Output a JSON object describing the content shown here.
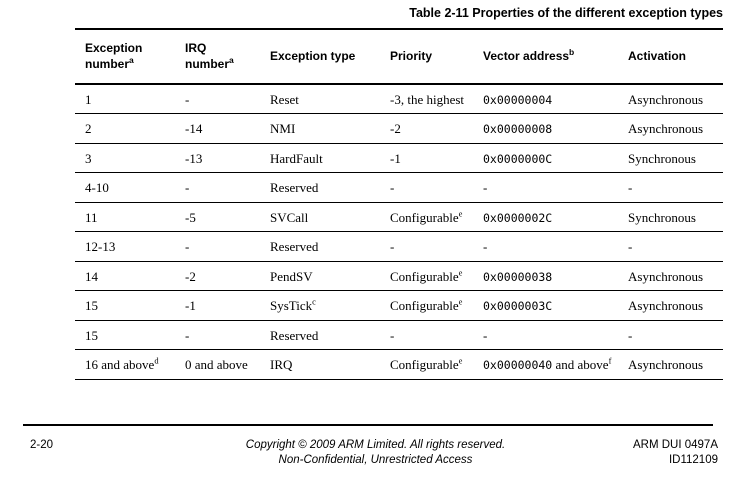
{
  "page": {
    "title": "Table 2-11 Properties of the different exception types"
  },
  "table": {
    "headers": [
      {
        "t": "Exception number",
        "s": "a"
      },
      {
        "t": "IRQ number",
        "s": "a"
      },
      {
        "t": "Exception type"
      },
      {
        "t": "Priority"
      },
      {
        "t": "Vector address",
        "s": "b"
      },
      {
        "t": "Activation"
      }
    ],
    "rows": [
      {
        "cells": [
          {
            "t": "1"
          },
          {
            "t": "-"
          },
          {
            "t": "Reset"
          },
          {
            "t": "-3, the highest"
          },
          {
            "m": "0x00000004"
          },
          {
            "t": "Asynchronous"
          }
        ]
      },
      {
        "cells": [
          {
            "t": "2"
          },
          {
            "t": "-14"
          },
          {
            "t": "NMI"
          },
          {
            "t": "-2"
          },
          {
            "m": "0x00000008"
          },
          {
            "t": "Asynchronous"
          }
        ]
      },
      {
        "cells": [
          {
            "t": "3"
          },
          {
            "t": "-13"
          },
          {
            "t": "HardFault"
          },
          {
            "t": "-1"
          },
          {
            "m": "0x0000000C"
          },
          {
            "t": "Synchronous"
          }
        ]
      },
      {
        "cells": [
          {
            "t": "4-10"
          },
          {
            "t": "-"
          },
          {
            "t": "Reserved"
          },
          {
            "t": "-"
          },
          {
            "t": "-"
          },
          {
            "t": "-"
          }
        ]
      },
      {
        "cells": [
          {
            "t": "11"
          },
          {
            "t": "-5"
          },
          {
            "t": "SVCall"
          },
          {
            "t": "Configurable",
            "s": "e"
          },
          {
            "m": "0x0000002C"
          },
          {
            "t": "Synchronous"
          }
        ]
      },
      {
        "cells": [
          {
            "t": "12-13"
          },
          {
            "t": "-"
          },
          {
            "t": "Reserved"
          },
          {
            "t": "-"
          },
          {
            "t": "-"
          },
          {
            "t": "-"
          }
        ]
      },
      {
        "cells": [
          {
            "t": "14"
          },
          {
            "t": "-2"
          },
          {
            "t": "PendSV"
          },
          {
            "t": "Configurable",
            "s": "e"
          },
          {
            "m": "0x00000038"
          },
          {
            "t": "Asynchronous"
          }
        ]
      },
      {
        "cells": [
          {
            "t": "15"
          },
          {
            "t": "-1"
          },
          {
            "t": "SysTick",
            "s": "c"
          },
          {
            "t": "Configurable",
            "s": "e"
          },
          {
            "m": "0x0000003C"
          },
          {
            "t": "Asynchronous"
          }
        ]
      },
      {
        "cells": [
          {
            "t": "15"
          },
          {
            "t": "-"
          },
          {
            "t": "Reserved"
          },
          {
            "t": "-"
          },
          {
            "t": "-"
          },
          {
            "t": "-"
          }
        ]
      },
      {
        "cells": [
          {
            "t": "16 and above",
            "s": "d"
          },
          {
            "t": "0 and above"
          },
          {
            "t": "IRQ"
          },
          {
            "t": "Configurable",
            "s": "e"
          },
          {
            "m": "0x00000040",
            "t2": " and above",
            "s": "f"
          },
          {
            "t": "Asynchronous"
          }
        ]
      }
    ]
  },
  "footer": {
    "page_number": "2-20",
    "copyright_line1": "Copyright © 2009 ARM Limited. All rights reserved.",
    "copyright_line2": "Non-Confidential, Unrestricted Access",
    "doc_ref": "ARM DUI 0497A",
    "doc_id": "ID112109"
  }
}
